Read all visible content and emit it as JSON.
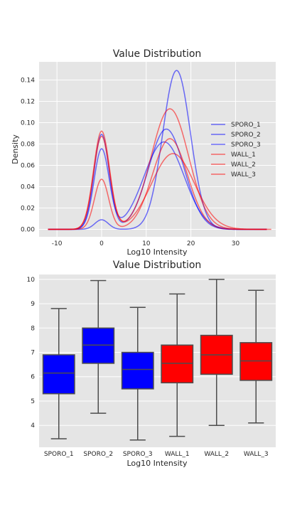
{
  "chart_data": [
    {
      "type": "line",
      "title": "Value Distribution",
      "xlabel": "Log10 Intensity",
      "ylabel": "Density",
      "xlim": [
        -14,
        39
      ],
      "ylim": [
        -0.007,
        0.157
      ],
      "xticks": [
        -10,
        0,
        10,
        20,
        30
      ],
      "yticks": [
        0.0,
        0.02,
        0.04,
        0.06,
        0.08,
        0.1,
        0.12,
        0.14
      ],
      "grid": true,
      "legend": "center-right",
      "series": [
        {
          "name": "SPORO_1",
          "color": "#0000ff",
          "range": [
            -12,
            37
          ],
          "peaks": [
            {
              "mu": 0,
              "sigma": 1.7,
              "h": 0.089
            },
            {
              "mu": 14.5,
              "sigma": 4.0,
              "h": 0.094
            }
          ]
        },
        {
          "name": "SPORO_2",
          "color": "#0000ff",
          "range": [
            -12,
            37
          ],
          "peaks": [
            {
              "mu": 0,
              "sigma": 1.5,
              "h": 0.009
            },
            {
              "mu": 16.8,
              "sigma": 3.1,
              "h": 0.149
            }
          ]
        },
        {
          "name": "SPORO_3",
          "color": "#0000ff",
          "range": [
            -12,
            37
          ],
          "peaks": [
            {
              "mu": 0,
              "sigma": 1.7,
              "h": 0.075
            },
            {
              "mu": 14.0,
              "sigma": 4.5,
              "h": 0.082
            }
          ]
        },
        {
          "name": "WALL_1",
          "color": "#ff0000",
          "range": [
            -12,
            37
          ],
          "peaks": [
            {
              "mu": 0,
              "sigma": 1.8,
              "h": 0.092
            },
            {
              "mu": 15.3,
              "sigma": 4.2,
              "h": 0.113
            }
          ]
        },
        {
          "name": "WALL_2",
          "color": "#ff0000",
          "range": [
            -12,
            37
          ],
          "peaks": [
            {
              "mu": 0,
              "sigma": 1.6,
              "h": 0.047
            },
            {
              "mu": 15.3,
              "sigma": 3.9,
              "h": 0.085
            }
          ]
        },
        {
          "name": "WALL_3",
          "color": "#ff0000",
          "range": [
            -12,
            38
          ],
          "peaks": [
            {
              "mu": 0,
              "sigma": 1.8,
              "h": 0.087
            },
            {
              "mu": 16.0,
              "sigma": 4.8,
              "h": 0.071
            }
          ]
        }
      ]
    },
    {
      "type": "box",
      "title": "Value Distribution",
      "xlabel": "Log10 Intensity",
      "ylabel": "",
      "ylim": [
        3.1,
        10.2
      ],
      "yticks": [
        4,
        5,
        6,
        7,
        8,
        9,
        10
      ],
      "grid": true,
      "categories": [
        "SPORO_1",
        "SPORO_2",
        "SPORO_3",
        "WALL_1",
        "WALL_2",
        "WALL_3"
      ],
      "boxes": [
        {
          "category": "SPORO_1",
          "color": "#0000ff",
          "whislo": 3.45,
          "q1": 5.3,
          "med": 6.15,
          "q3": 6.9,
          "whishi": 8.8
        },
        {
          "category": "SPORO_2",
          "color": "#0000ff",
          "whislo": 4.5,
          "q1": 6.55,
          "med": 7.3,
          "q3": 8.0,
          "whishi": 9.95
        },
        {
          "category": "SPORO_3",
          "color": "#0000ff",
          "whislo": 3.4,
          "q1": 5.5,
          "med": 6.3,
          "q3": 7.0,
          "whishi": 8.85
        },
        {
          "category": "WALL_1",
          "color": "#ff0000",
          "whislo": 3.55,
          "q1": 5.75,
          "med": 6.55,
          "q3": 7.3,
          "whishi": 9.4
        },
        {
          "category": "WALL_2",
          "color": "#ff0000",
          "whislo": 4.0,
          "q1": 6.1,
          "med": 6.9,
          "q3": 7.7,
          "whishi": 10.0
        },
        {
          "category": "WALL_3",
          "color": "#ff0000",
          "whislo": 4.1,
          "q1": 5.85,
          "med": 6.65,
          "q3": 7.4,
          "whishi": 9.55
        }
      ]
    }
  ]
}
